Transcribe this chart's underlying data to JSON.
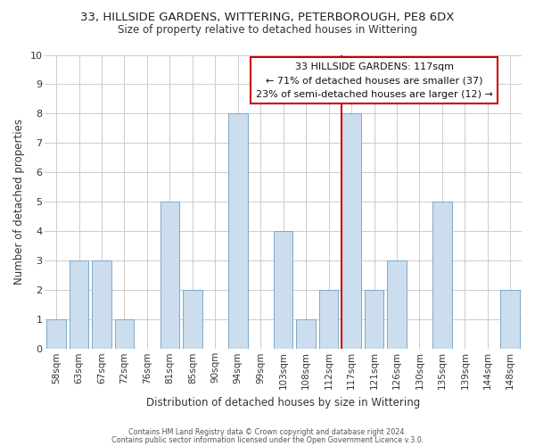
{
  "title": "33, HILLSIDE GARDENS, WITTERING, PETERBOROUGH, PE8 6DX",
  "subtitle": "Size of property relative to detached houses in Wittering",
  "xlabel": "Distribution of detached houses by size in Wittering",
  "ylabel": "Number of detached properties",
  "footnote1": "Contains HM Land Registry data © Crown copyright and database right 2024.",
  "footnote2": "Contains public sector information licensed under the Open Government Licence v.3.0.",
  "bar_labels": [
    "58sqm",
    "63sqm",
    "67sqm",
    "72sqm",
    "76sqm",
    "81sqm",
    "85sqm",
    "90sqm",
    "94sqm",
    "99sqm",
    "103sqm",
    "108sqm",
    "112sqm",
    "117sqm",
    "121sqm",
    "126sqm",
    "130sqm",
    "135sqm",
    "139sqm",
    "144sqm",
    "148sqm"
  ],
  "bar_values": [
    1,
    3,
    3,
    1,
    0,
    5,
    2,
    0,
    8,
    0,
    4,
    1,
    2,
    8,
    2,
    3,
    0,
    5,
    0,
    0,
    2
  ],
  "bar_color": "#ccdded",
  "bar_edge_color": "#7baac8",
  "highlight_index": 13,
  "highlight_line_color": "#cc0000",
  "ylim": [
    0,
    10
  ],
  "yticks": [
    0,
    1,
    2,
    3,
    4,
    5,
    6,
    7,
    8,
    9,
    10
  ],
  "annotation_title": "33 HILLSIDE GARDENS: 117sqm",
  "annotation_line1": "← 71% of detached houses are smaller (37)",
  "annotation_line2": "23% of semi-detached houses are larger (12) →",
  "annotation_box_color": "#cc0000",
  "annotation_bg": "#ffffff",
  "grid_color": "#cccccc"
}
